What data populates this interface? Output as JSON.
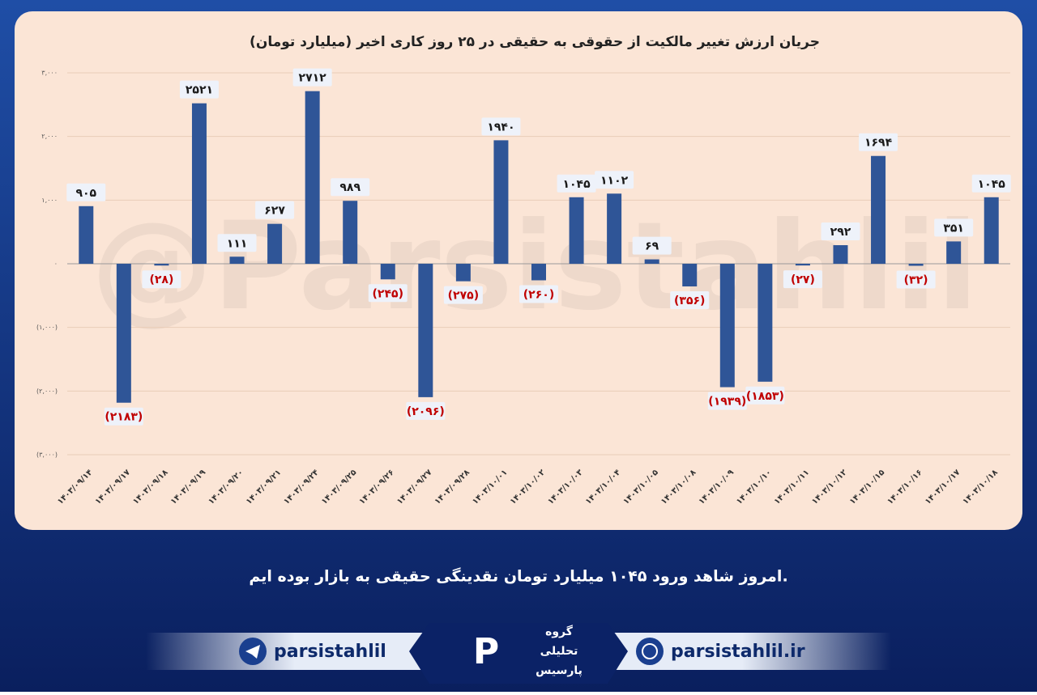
{
  "chart_data": {
    "type": "bar",
    "title": "جریان ارزش تغییر مالکیت از حقوقی به حقیقی در ۲۵ روز کاری اخیر (میلیارد تومان)",
    "categories": [
      "۱۴۰۳/۰۹/۱۴",
      "۱۴۰۳/۰۹/۱۷",
      "۱۴۰۳/۰۹/۱۸",
      "۱۴۰۳/۰۹/۱۹",
      "۱۴۰۳/۰۹/۲۰",
      "۱۴۰۳/۰۹/۲۱",
      "۱۴۰۳/۰۹/۲۴",
      "۱۴۰۳/۰۹/۲۵",
      "۱۴۰۳/۰۹/۲۶",
      "۱۴۰۳/۰۹/۲۷",
      "۱۴۰۳/۰۹/۲۸",
      "۱۴۰۳/۱۰/۰۱",
      "۱۴۰۳/۱۰/۰۲",
      "۱۴۰۳/۱۰/۰۳",
      "۱۴۰۳/۱۰/۰۴",
      "۱۴۰۳/۱۰/۰۵",
      "۱۴۰۳/۱۰/۰۸",
      "۱۴۰۳/۱۰/۰۹",
      "۱۴۰۳/۱۰/۱۰",
      "۱۴۰۳/۱۰/۱۱",
      "۱۴۰۳/۱۰/۱۲",
      "۱۴۰۳/۱۰/۱۵",
      "۱۴۰۳/۱۰/۱۶",
      "۱۴۰۳/۱۰/۱۷",
      "۱۴۰۳/۱۰/۱۸"
    ],
    "values": [
      905,
      -2183,
      -28,
      2521,
      111,
      627,
      2712,
      989,
      -245,
      -2096,
      -275,
      1940,
      -260,
      1045,
      1102,
      69,
      -356,
      -1939,
      -1853,
      -27,
      292,
      1694,
      -32,
      351,
      1045
    ],
    "value_labels": [
      "۹۰۵",
      "(۲۱۸۳)",
      "(۲۸)",
      "۲۵۲۱",
      "۱۱۱",
      "۶۲۷",
      "۲۷۱۲",
      "۹۸۹",
      "(۲۴۵)",
      "(۲۰۹۶)",
      "(۲۷۵)",
      "۱۹۴۰",
      "(۲۶۰)",
      "۱۰۴۵",
      "۱۱۰۲",
      "۶۹",
      "(۳۵۶)",
      "(۱۹۳۹)",
      "(۱۸۵۳)",
      "(۲۷)",
      "۲۹۲",
      "۱۶۹۴",
      "(۳۲)",
      "۳۵۱",
      "۱۰۴۵"
    ],
    "color": "#2f5597",
    "negative_label_color": "#c00000",
    "ylim": [
      -3000,
      3000
    ],
    "yticks": [
      {
        "value": -3000,
        "label": "(۳,۰۰۰)"
      },
      {
        "value": -2000,
        "label": "(۲,۰۰۰)"
      },
      {
        "value": -1000,
        "label": "(۱,۰۰۰)"
      },
      {
        "value": 0,
        "label": "۰"
      },
      {
        "value": 1000,
        "label": "۱,۰۰۰"
      },
      {
        "value": 2000,
        "label": "۲,۰۰۰"
      },
      {
        "value": 3000,
        "label": "۳,۰۰۰"
      }
    ],
    "grid": true,
    "watermark": "@Parsistahlil"
  },
  "footer": {
    "message": "امروز شاهد ورود ۱۰۴۵ میلیارد تومان نقدینگی حقیقی به بازار بوده ایم.",
    "telegram": "parsistahlil",
    "website": "parsistahlil.ir",
    "logo": [
      "گروه",
      "تحلیلی",
      "پارسیس"
    ]
  }
}
